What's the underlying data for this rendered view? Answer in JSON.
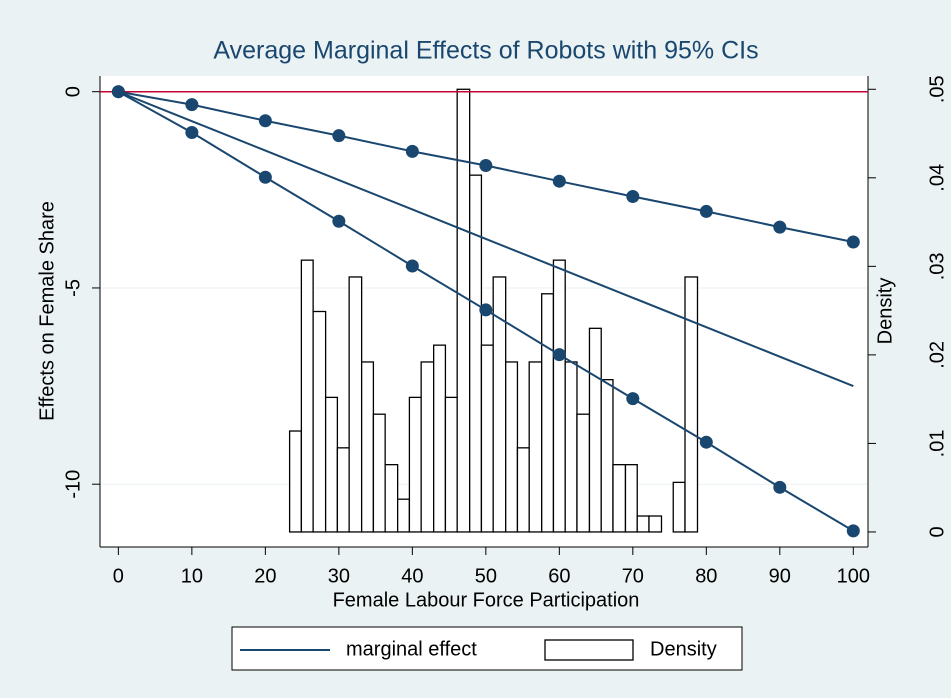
{
  "chart_data": {
    "type": "line",
    "title": "Average Marginal Effects of Robots with 95% CIs",
    "x_label": "Female Labour Force Participation",
    "y_label": "Effects on Female Share",
    "y2_label": "Density",
    "xlim": [
      -2.5,
      102
    ],
    "xticks": [
      0,
      10,
      20,
      30,
      40,
      50,
      60,
      70,
      80,
      90,
      100
    ],
    "ylim": [
      -11.6,
      0.4
    ],
    "yticks": [
      -10,
      -5,
      0
    ],
    "y2lim": [
      -0.0017,
      0.0515
    ],
    "y2ticks": [
      0,
      {
        "value": 0.01,
        "label": ".01"
      },
      {
        "value": 0.02,
        "label": ".02"
      },
      {
        "value": 0.03,
        "label": ".03"
      },
      {
        "value": 0.04,
        "label": ".04"
      },
      {
        "value": 0.05,
        "label": ".05"
      }
    ],
    "grid": true,
    "yline": 0,
    "yline_color": "#c10534",
    "series": [
      {
        "name": "marginal effect",
        "color": "#1a476f",
        "markers": false,
        "x": [
          0,
          10,
          20,
          30,
          40,
          50,
          60,
          70,
          80,
          90,
          100
        ],
        "values": [
          0,
          -0.75,
          -1.5,
          -2.25,
          -3,
          -3.75,
          -4.5,
          -5.25,
          -6,
          -6.75,
          -7.5
        ]
      },
      {
        "color": "#1a476f",
        "markers": true,
        "x": [
          0,
          10,
          20,
          30,
          40,
          50,
          60,
          70,
          80,
          90,
          100
        ],
        "values": [
          0,
          -0.33,
          -0.74,
          -1.12,
          -1.52,
          -1.88,
          -2.28,
          -2.67,
          -3.05,
          -3.45,
          -3.83
        ]
      },
      {
        "color": "#1a476f",
        "markers": true,
        "x": [
          0,
          10,
          20,
          30,
          40,
          50,
          60,
          70,
          80,
          90,
          100
        ],
        "values": [
          0,
          -1.04,
          -2.18,
          -3.3,
          -4.44,
          -5.56,
          -6.7,
          -7.82,
          -8.93,
          -10.08,
          -11.19
        ]
      }
    ],
    "histogram": {
      "name": "Density",
      "axis": "y2",
      "fill": "#ffffff",
      "stroke": "#000000",
      "bins": [
        23.3,
        24.9,
        26.5,
        28.2,
        29.8,
        31.4,
        33.1,
        34.7,
        36.3,
        38.0,
        39.6,
        41.2,
        42.9,
        44.5,
        46.1,
        47.8,
        49.4,
        51.0,
        52.7,
        54.3,
        55.9,
        57.6,
        59.2,
        60.8,
        62.4,
        64.1,
        65.7,
        67.3,
        69.0,
        70.6,
        72.2,
        73.9,
        75.5,
        77.1,
        78.8
      ],
      "counts": [
        0.0114,
        0.0307,
        0.0249,
        0.0152,
        0.0095,
        0.0288,
        0.0192,
        0.0133,
        0.0076,
        0.0037,
        0.0152,
        0.0192,
        0.0211,
        0.0152,
        0.05,
        0.0403,
        0.0211,
        0.0288,
        0.0192,
        0.0095,
        0.0192,
        0.0269,
        0.0307,
        0.0192,
        0.0133,
        0.023,
        0.0172,
        0.0076,
        0.0076,
        0.0018,
        0.0018,
        0,
        0.0056,
        0.0288
      ]
    }
  }
}
